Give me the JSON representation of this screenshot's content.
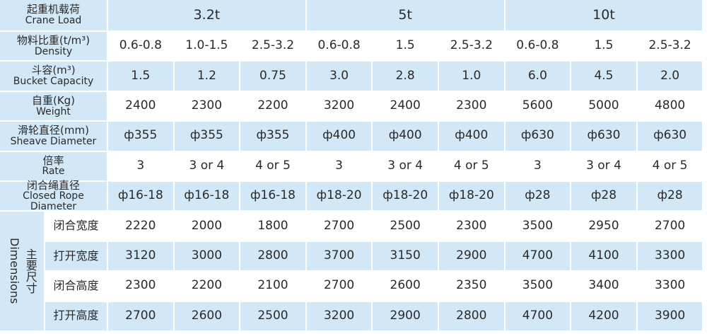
{
  "header": {
    "label_cn": "起重机载荷",
    "label_en": "Crane Load",
    "groups": [
      "3.2t",
      "5t",
      "10t"
    ]
  },
  "rows": [
    {
      "label_cn": "物料比重(t/m³)",
      "label_en": "Density",
      "values": [
        "0.6-0.8",
        "1.0-1.5",
        "2.5-3.2",
        "0.6-0.8",
        "1.5",
        "2.5-3.2",
        "0.6-0.8",
        "1.5",
        "2.5-3.2"
      ]
    },
    {
      "label_cn": "斗容(m³)",
      "label_en": "Bucket Capacity",
      "values": [
        "1.5",
        "1.2",
        "0.75",
        "3.0",
        "2.8",
        "1.0",
        "6.0",
        "4.5",
        "2.0"
      ]
    },
    {
      "label_cn": "自重(Kg)",
      "label_en": "Weight",
      "values": [
        "2400",
        "2300",
        "2200",
        "3200",
        "2400",
        "2300",
        "5600",
        "5000",
        "4800"
      ]
    },
    {
      "label_cn": "滑轮直径(mm)",
      "label_en": "Sheave Diameter",
      "values": [
        "ф355",
        "ф355",
        "ф355",
        "ф400",
        "ф400",
        "ф400",
        "ф630",
        "ф630",
        "ф630"
      ]
    },
    {
      "label_cn": "倍率",
      "label_en": "Rate",
      "values": [
        "3",
        "3 or 4",
        "4 or 5",
        "3",
        "3 or 4",
        "4 or 5",
        "3",
        "3 or 4",
        "4 or 5"
      ]
    },
    {
      "label_cn": "闭合绳直径",
      "label_en": "Closed Rope Diameter",
      "values": [
        "ф16-18",
        "ф16-18",
        "ф16-18",
        "ф18-20",
        "ф18-20",
        "ф18-20",
        "ф28",
        "ф28",
        "ф28"
      ]
    }
  ],
  "dimensions": {
    "label_cn": "主要尺寸",
    "label_en": "Dimensions",
    "rows": [
      {
        "label": "闭合宽度",
        "values": [
          "2220",
          "2000",
          "1800",
          "2700",
          "2500",
          "2300",
          "3500",
          "2950",
          "2700"
        ]
      },
      {
        "label": "打开宽度",
        "values": [
          "3120",
          "3000",
          "2800",
          "3700",
          "3150",
          "2900",
          "4700",
          "4100",
          "3300"
        ]
      },
      {
        "label": "闭合高度",
        "values": [
          "2300",
          "2200",
          "2100",
          "2700",
          "2600",
          "2350",
          "3500",
          "3400",
          "3300"
        ]
      },
      {
        "label": "打开高度",
        "values": [
          "2700",
          "2600",
          "2500",
          "3200",
          "2900",
          "2800",
          "4700",
          "4200",
          "3900"
        ]
      }
    ]
  }
}
